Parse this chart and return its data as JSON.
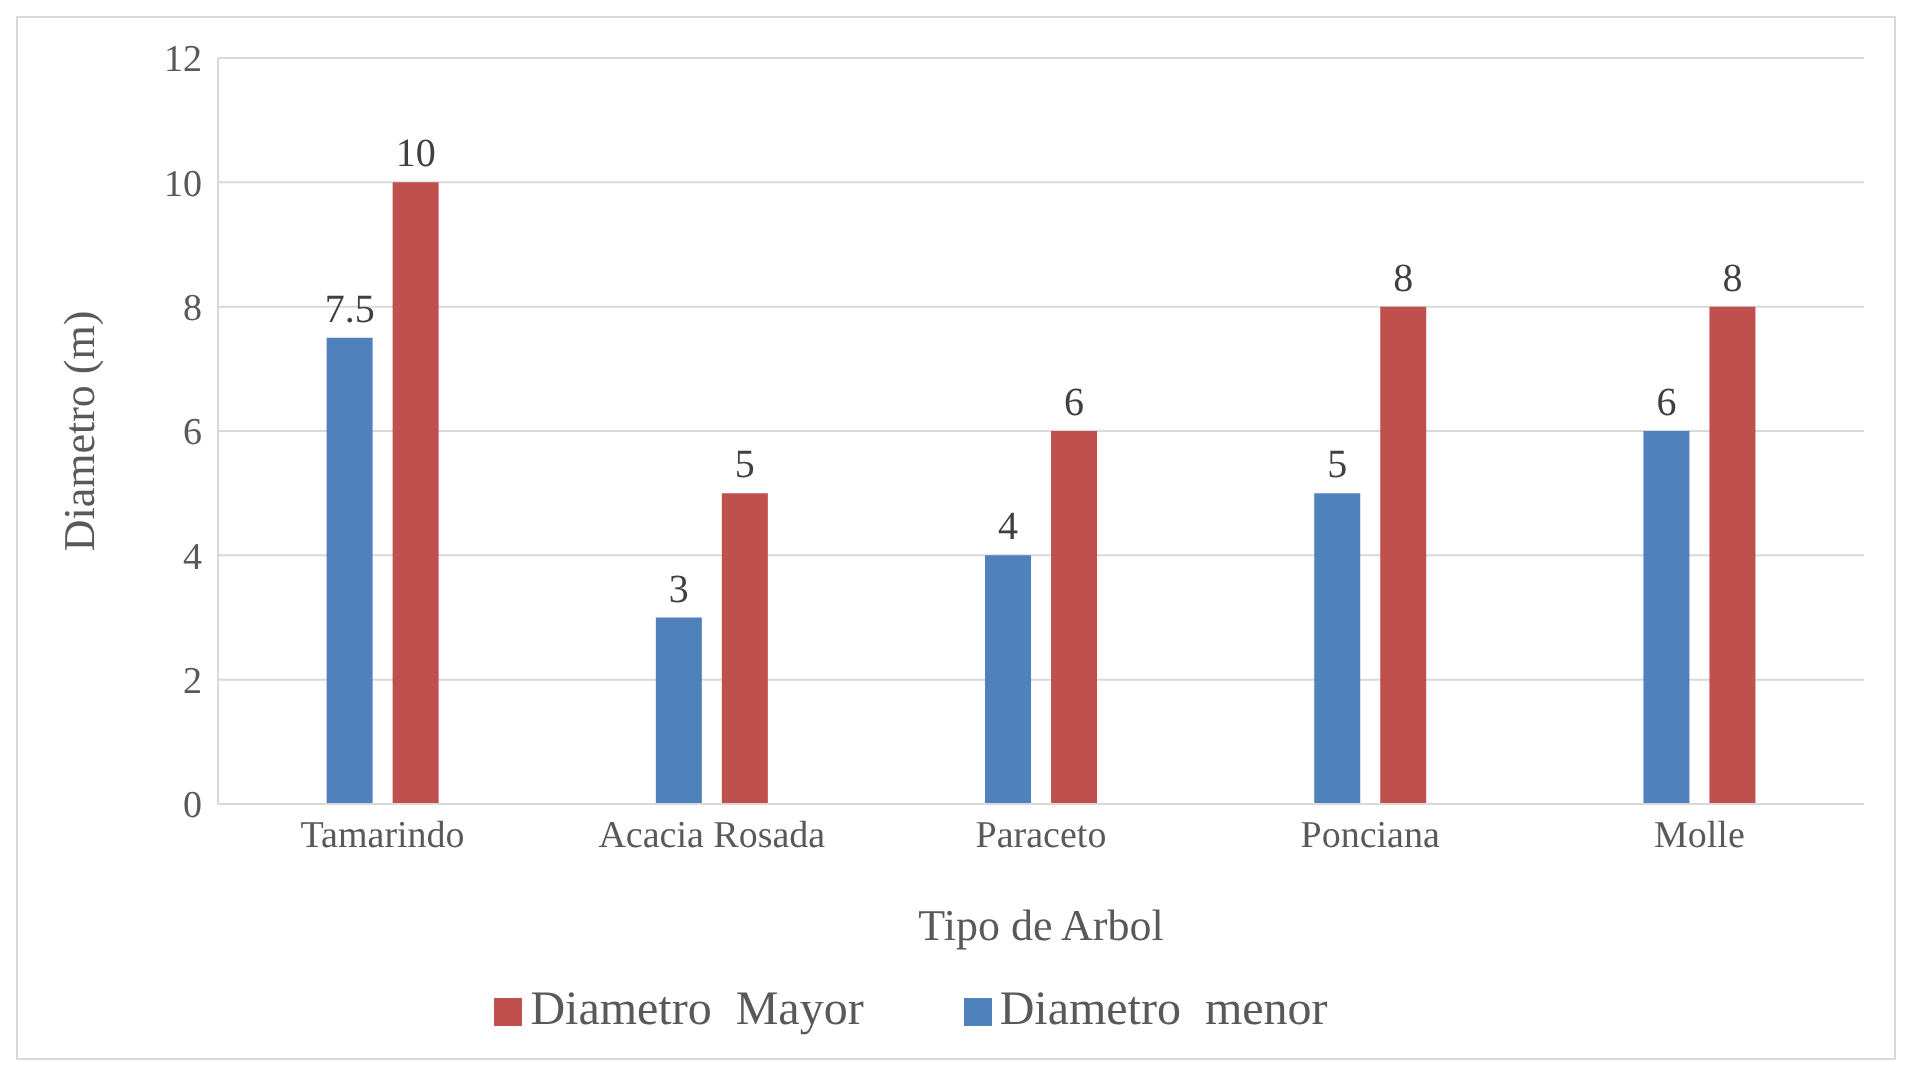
{
  "chart_data": {
    "type": "bar",
    "xlabel": "Tipo de Arbol",
    "ylabel": "Diametro (m)",
    "categories": [
      "Tamarindo",
      "Acacia Rosada",
      "Paraceto",
      "Ponciana",
      "Molle"
    ],
    "series": [
      {
        "name": "Diametro  menor",
        "color": "#4f81bd",
        "values": [
          7.5,
          3,
          4,
          5,
          6
        ]
      },
      {
        "name": "Diametro  Mayor",
        "color": "#c0504d",
        "values": [
          10,
          5,
          6,
          8,
          8
        ]
      }
    ],
    "ylim": [
      0,
      12
    ],
    "yticks": [
      0,
      2,
      4,
      6,
      8,
      10,
      12
    ],
    "grid": "y",
    "legend": "bottom",
    "data_labels": true
  }
}
